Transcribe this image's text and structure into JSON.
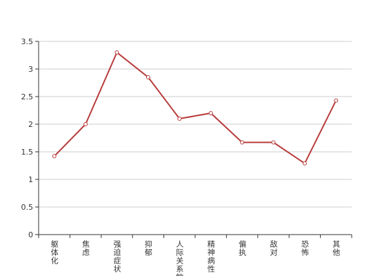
{
  "chart_data": {
    "type": "line",
    "categories": [
      "躯体化",
      "焦虑",
      "强迫症状",
      "抑郁",
      "人际关系敏感",
      "精神病性",
      "偏执",
      "敌对",
      "恐怖",
      "其他"
    ],
    "values": [
      1.42,
      2.0,
      3.3,
      2.85,
      2.1,
      2.2,
      1.67,
      1.67,
      1.29,
      2.43
    ],
    "color": "#b83b3b",
    "ylim": [
      0,
      3.5
    ],
    "yticks": [
      0,
      0.5,
      1,
      1.5,
      2,
      2.5,
      3,
      3.5
    ],
    "grid": true
  }
}
